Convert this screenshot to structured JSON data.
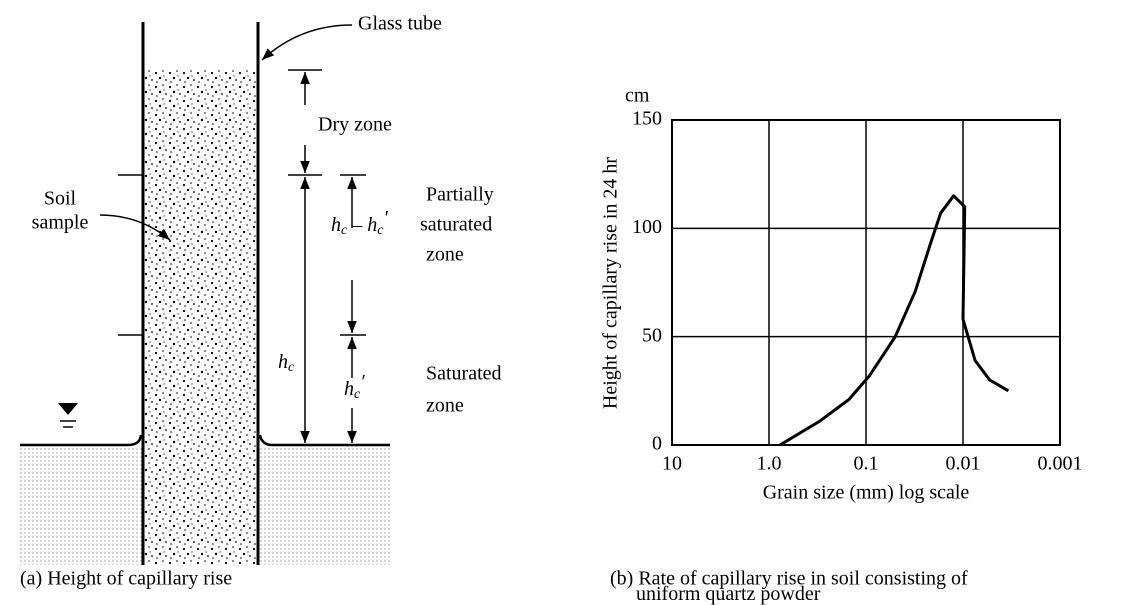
{
  "diagram": {
    "glass_tube": "Glass tube",
    "dry_zone": "Dry zone",
    "soil_sample": [
      "Soil",
      "sample"
    ],
    "partially_saturated_zone": [
      "Partially",
      "saturated",
      "zone"
    ],
    "saturated_zone": [
      "Saturated",
      "zone"
    ],
    "hc_diff": [
      "h",
      "c",
      " – h",
      "c",
      "′"
    ],
    "hc": [
      "h",
      "c"
    ],
    "hc_prime": [
      "h",
      "c",
      "′"
    ],
    "caption": "(a) Height of capillary rise"
  },
  "chart_data": {
    "type": "line",
    "y_unit": "cm",
    "ylabel": "Height of capillary rise in 24 hr",
    "xlabel": "Grain size (mm) log scale",
    "caption": [
      "(b) Rate of capillary rise in soil consisting of",
      "uniform quartz powder"
    ],
    "xscale": "log",
    "xlim": [
      10,
      0.001
    ],
    "xticks": [
      10,
      {
        "value": 1,
        "label": "1.0"
      },
      0.1,
      0.01,
      0.001
    ],
    "ylim": [
      0,
      150
    ],
    "yticks": [
      0,
      50,
      100,
      150
    ],
    "grid": true,
    "color": "#000000",
    "x": [
      0.77,
      0.3,
      0.15,
      0.092,
      0.05,
      0.031,
      0.022,
      0.017,
      0.0125,
      0.0096,
      0.0098,
      0.01,
      0.0075,
      0.0053,
      0.0034
    ],
    "values": [
      0,
      11,
      21,
      32,
      50,
      71,
      92,
      107,
      115,
      110,
      85,
      58,
      39,
      30,
      25
    ]
  }
}
